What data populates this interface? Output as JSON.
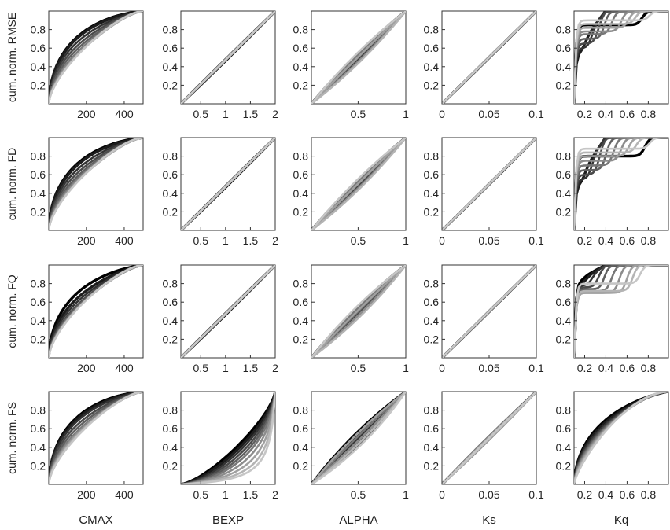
{
  "chart_data": {
    "type": "line",
    "layout": "grid of 4 rows x 5 columns of small-multiple cumulative distribution plots",
    "row_labels": [
      "cum. norm. RMSE",
      "cum. norm. FD",
      "cum. norm. FQ",
      "cum. norm. FS"
    ],
    "col_labels": [
      "CMAX",
      "BEXP",
      "ALPHA",
      "Ks",
      "Kq"
    ],
    "ylim": [
      0,
      1
    ],
    "y_ticks": [
      "0.2",
      "0.4",
      "0.6",
      "0.8"
    ],
    "columns": [
      {
        "name": "CMAX",
        "xlim": [
          1,
          500
        ],
        "x_ticks": [
          200,
          400
        ],
        "x_tick_labels": [
          "200",
          "400"
        ]
      },
      {
        "name": "BEXP",
        "xlim": [
          0.1,
          2.0
        ],
        "x_ticks": [
          0.5,
          1,
          1.5,
          2
        ],
        "x_tick_labels": [
          "0.5",
          "1",
          "1.5",
          "2"
        ]
      },
      {
        "name": "ALPHA",
        "xlim": [
          0.01,
          1.0
        ],
        "x_ticks": [
          0.5,
          1
        ],
        "x_tick_labels": [
          "0.5",
          "1"
        ]
      },
      {
        "name": "Ks",
        "xlim": [
          0,
          0.1
        ],
        "x_ticks": [
          0,
          0.05,
          0.1
        ],
        "x_tick_labels": [
          "0",
          "0.05",
          "0.1"
        ]
      },
      {
        "name": "Kq",
        "xlim": [
          0.1,
          0.99
        ],
        "x_ticks": [
          0.2,
          0.4,
          0.6,
          0.8
        ],
        "x_tick_labels": [
          "0.2",
          "0.4",
          "0.6",
          "0.8"
        ]
      }
    ],
    "series_note": "Each panel shows ~10 cumulative curves shaded black to light gray",
    "series_colors": [
      "#000000",
      "#1c1c1c",
      "#333333",
      "#4a4a4a",
      "#606060",
      "#777777",
      "#8c8c8c",
      "#a0a0a0",
      "#b4b4b4",
      "#c6c6c6"
    ],
    "panels": [
      [
        {
          "kind": "concave",
          "curves": [
            [
              0.96,
              0.04
            ],
            [
              0.92,
              0.06
            ],
            [
              0.8,
              0.1
            ],
            [
              0.7,
              0.12
            ],
            [
              0.6,
              0.15
            ],
            [
              0.5,
              0.18
            ],
            [
              0.45,
              0.2
            ],
            [
              0.4,
              0.22
            ],
            [
              0.38,
              0.25
            ],
            [
              0.35,
              0.28
            ]
          ]
        },
        {
          "kind": "linear",
          "curves": [
            [
              0.52,
              0.48
            ],
            [
              0.5,
              0.52
            ],
            [
              0.51,
              0.49
            ],
            [
              0.49,
              0.51
            ],
            [
              0.5,
              0.5
            ],
            [
              0.52,
              0.5
            ],
            [
              0.48,
              0.5
            ],
            [
              0.5,
              0.48
            ],
            [
              0.51,
              0.51
            ],
            [
              0.49,
              0.49
            ]
          ]
        },
        {
          "kind": "linear",
          "curves": [
            [
              0.4,
              0.6
            ],
            [
              0.45,
              0.55
            ],
            [
              0.55,
              0.45
            ],
            [
              0.6,
              0.4
            ],
            [
              0.5,
              0.5
            ],
            [
              0.42,
              0.58
            ],
            [
              0.58,
              0.42
            ],
            [
              0.48,
              0.52
            ],
            [
              0.62,
              0.38
            ],
            [
              0.38,
              0.62
            ]
          ]
        },
        {
          "kind": "linear",
          "curves": [
            [
              0.5,
              0.5
            ],
            [
              0.51,
              0.49
            ],
            [
              0.49,
              0.51
            ],
            [
              0.5,
              0.52
            ],
            [
              0.52,
              0.5
            ],
            [
              0.5,
              0.48
            ],
            [
              0.48,
              0.5
            ],
            [
              0.51,
              0.51
            ],
            [
              0.49,
              0.49
            ],
            [
              0.5,
              0.5
            ]
          ]
        },
        {
          "kind": "step",
          "curves": [
            [
              0.72,
              0.85
            ],
            [
              0.1,
              0.55
            ],
            [
              0.18,
              0.6
            ],
            [
              0.25,
              0.65
            ],
            [
              0.32,
              0.7
            ],
            [
              0.4,
              0.75
            ],
            [
              0.5,
              0.78
            ],
            [
              0.58,
              0.82
            ],
            [
              0.65,
              0.86
            ],
            [
              0.8,
              0.9
            ]
          ]
        }
      ],
      [
        {
          "kind": "concave",
          "curves": [
            [
              0.95,
              0.05
            ],
            [
              0.9,
              0.07
            ],
            [
              0.78,
              0.1
            ],
            [
              0.68,
              0.12
            ],
            [
              0.58,
              0.15
            ],
            [
              0.5,
              0.18
            ],
            [
              0.45,
              0.2
            ],
            [
              0.4,
              0.22
            ],
            [
              0.38,
              0.25
            ],
            [
              0.35,
              0.28
            ]
          ]
        },
        {
          "kind": "linear",
          "curves": [
            [
              0.52,
              0.48
            ],
            [
              0.5,
              0.52
            ],
            [
              0.51,
              0.49
            ],
            [
              0.49,
              0.51
            ],
            [
              0.5,
              0.5
            ],
            [
              0.52,
              0.5
            ],
            [
              0.48,
              0.5
            ],
            [
              0.5,
              0.48
            ],
            [
              0.51,
              0.51
            ],
            [
              0.49,
              0.49
            ]
          ]
        },
        {
          "kind": "linear",
          "curves": [
            [
              0.4,
              0.6
            ],
            [
              0.45,
              0.55
            ],
            [
              0.55,
              0.45
            ],
            [
              0.6,
              0.4
            ],
            [
              0.5,
              0.5
            ],
            [
              0.42,
              0.58
            ],
            [
              0.58,
              0.42
            ],
            [
              0.48,
              0.52
            ],
            [
              0.62,
              0.38
            ],
            [
              0.38,
              0.62
            ]
          ]
        },
        {
          "kind": "linear",
          "curves": [
            [
              0.5,
              0.5
            ],
            [
              0.51,
              0.49
            ],
            [
              0.49,
              0.51
            ],
            [
              0.5,
              0.52
            ],
            [
              0.52,
              0.5
            ],
            [
              0.5,
              0.48
            ],
            [
              0.48,
              0.5
            ],
            [
              0.51,
              0.51
            ],
            [
              0.49,
              0.49
            ],
            [
              0.5,
              0.5
            ]
          ]
        },
        {
          "kind": "step",
          "curves": [
            [
              0.75,
              0.8
            ],
            [
              0.1,
              0.5
            ],
            [
              0.18,
              0.55
            ],
            [
              0.26,
              0.6
            ],
            [
              0.34,
              0.65
            ],
            [
              0.42,
              0.7
            ],
            [
              0.5,
              0.75
            ],
            [
              0.58,
              0.8
            ],
            [
              0.66,
              0.84
            ],
            [
              0.8,
              0.88
            ]
          ]
        }
      ],
      [
        {
          "kind": "concave",
          "curves": [
            [
              0.9,
              0.06
            ],
            [
              0.75,
              0.1
            ],
            [
              0.65,
              0.12
            ],
            [
              0.55,
              0.15
            ],
            [
              0.5,
              0.17
            ],
            [
              0.45,
              0.2
            ],
            [
              0.42,
              0.22
            ],
            [
              0.4,
              0.24
            ],
            [
              0.38,
              0.26
            ],
            [
              0.36,
              0.28
            ]
          ]
        },
        {
          "kind": "linear",
          "curves": [
            [
              0.52,
              0.48
            ],
            [
              0.5,
              0.52
            ],
            [
              0.51,
              0.49
            ],
            [
              0.49,
              0.51
            ],
            [
              0.5,
              0.5
            ],
            [
              0.52,
              0.5
            ],
            [
              0.48,
              0.5
            ],
            [
              0.5,
              0.48
            ],
            [
              0.51,
              0.51
            ],
            [
              0.49,
              0.49
            ]
          ]
        },
        {
          "kind": "linear",
          "curves": [
            [
              0.38,
              0.62
            ],
            [
              0.44,
              0.56
            ],
            [
              0.56,
              0.44
            ],
            [
              0.62,
              0.38
            ],
            [
              0.5,
              0.5
            ],
            [
              0.42,
              0.58
            ],
            [
              0.58,
              0.42
            ],
            [
              0.47,
              0.53
            ],
            [
              0.64,
              0.36
            ],
            [
              0.36,
              0.64
            ]
          ]
        },
        {
          "kind": "linear",
          "curves": [
            [
              0.5,
              0.5
            ],
            [
              0.51,
              0.49
            ],
            [
              0.49,
              0.51
            ],
            [
              0.5,
              0.52
            ],
            [
              0.52,
              0.5
            ],
            [
              0.5,
              0.48
            ],
            [
              0.48,
              0.5
            ],
            [
              0.51,
              0.51
            ],
            [
              0.49,
              0.49
            ],
            [
              0.5,
              0.5
            ]
          ]
        },
        {
          "kind": "step",
          "curves": [
            [
              0.08,
              0.82
            ],
            [
              0.12,
              0.8
            ],
            [
              0.18,
              0.78
            ],
            [
              0.25,
              0.76
            ],
            [
              0.32,
              0.74
            ],
            [
              0.4,
              0.72
            ],
            [
              0.48,
              0.7
            ],
            [
              0.56,
              0.7
            ],
            [
              0.62,
              0.72
            ],
            [
              0.7,
              0.8
            ]
          ]
        }
      ],
      [
        {
          "kind": "concave",
          "curves": [
            [
              0.98,
              0.02
            ],
            [
              0.92,
              0.05
            ],
            [
              0.85,
              0.08
            ],
            [
              0.75,
              0.1
            ],
            [
              0.65,
              0.13
            ],
            [
              0.55,
              0.16
            ],
            [
              0.5,
              0.18
            ],
            [
              0.45,
              0.2
            ],
            [
              0.4,
              0.23
            ],
            [
              0.36,
              0.26
            ]
          ]
        },
        {
          "kind": "convex",
          "curves": [
            [
              0.3,
              0.7
            ],
            [
              0.35,
              0.65
            ],
            [
              0.4,
              0.6
            ],
            [
              0.45,
              0.55
            ],
            [
              0.5,
              0.5
            ],
            [
              0.55,
              0.45
            ],
            [
              0.62,
              0.38
            ],
            [
              0.7,
              0.3
            ],
            [
              0.78,
              0.22
            ],
            [
              0.85,
              0.15
            ]
          ]
        },
        {
          "kind": "linear",
          "curves": [
            [
              0.35,
              0.65
            ],
            [
              0.42,
              0.58
            ],
            [
              0.5,
              0.5
            ],
            [
              0.58,
              0.42
            ],
            [
              0.65,
              0.35
            ],
            [
              0.45,
              0.55
            ],
            [
              0.55,
              0.45
            ],
            [
              0.38,
              0.62
            ],
            [
              0.62,
              0.38
            ],
            [
              0.7,
              0.3
            ]
          ]
        },
        {
          "kind": "linear",
          "curves": [
            [
              0.47,
              0.53
            ],
            [
              0.5,
              0.5
            ],
            [
              0.53,
              0.47
            ],
            [
              0.49,
              0.51
            ],
            [
              0.51,
              0.49
            ],
            [
              0.46,
              0.54
            ],
            [
              0.54,
              0.46
            ],
            [
              0.48,
              0.52
            ],
            [
              0.52,
              0.48
            ],
            [
              0.5,
              0.5
            ]
          ]
        },
        {
          "kind": "concave",
          "curves": [
            [
              0.8,
              0.1
            ],
            [
              0.72,
              0.14
            ],
            [
              0.65,
              0.18
            ],
            [
              0.58,
              0.22
            ],
            [
              0.52,
              0.26
            ],
            [
              0.46,
              0.3
            ],
            [
              0.4,
              0.34
            ],
            [
              0.34,
              0.38
            ],
            [
              0.28,
              0.42
            ],
            [
              0.22,
              0.46
            ]
          ]
        }
      ]
    ]
  }
}
